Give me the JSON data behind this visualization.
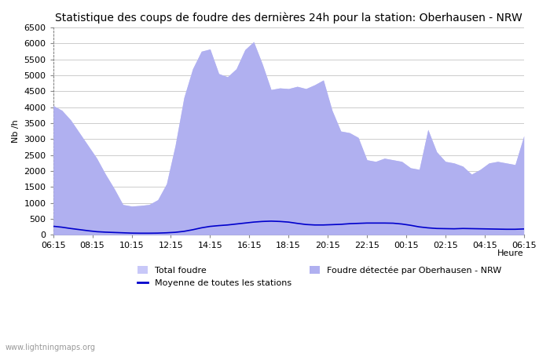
{
  "title": "Statistique des coups de foudre des dernières 24h pour la station: Oberhausen - NRW",
  "ylabel": "Nb /h",
  "xlabel_right": "Heure",
  "watermark": "www.lightningmaps.org",
  "ylim": [
    0,
    6500
  ],
  "yticks": [
    0,
    500,
    1000,
    1500,
    2000,
    2500,
    3000,
    3500,
    4000,
    4500,
    5000,
    5500,
    6000,
    6500
  ],
  "x_labels": [
    "06:15",
    "08:15",
    "10:15",
    "12:15",
    "14:15",
    "16:15",
    "18:15",
    "20:15",
    "22:15",
    "00:15",
    "02:15",
    "04:15",
    "06:15"
  ],
  "total_foudre": [
    4050,
    3900,
    3600,
    3200,
    2800,
    2400,
    1900,
    1450,
    950,
    900,
    920,
    950,
    1100,
    1600,
    2800,
    4300,
    5200,
    5750,
    5820,
    5050,
    4950,
    5200,
    5800,
    6050,
    5350,
    4550,
    4600,
    4580,
    4650,
    4580,
    4700,
    4850,
    3900,
    3250,
    3200,
    3050,
    2350,
    2300,
    2400,
    2350,
    2300,
    2100,
    2050,
    3300,
    2600,
    2300,
    2250,
    2150,
    1900,
    2050,
    2250,
    2300,
    2250,
    2200,
    3100
  ],
  "foudre_oberhausen": [
    4050,
    3900,
    3600,
    3200,
    2800,
    2400,
    1900,
    1450,
    950,
    900,
    920,
    950,
    1100,
    1600,
    2800,
    4300,
    5200,
    5750,
    5820,
    5050,
    4950,
    5200,
    5800,
    6050,
    5350,
    4550,
    4600,
    4580,
    4650,
    4580,
    4700,
    4850,
    3900,
    3250,
    3200,
    3050,
    2350,
    2300,
    2400,
    2350,
    2300,
    2100,
    2050,
    3300,
    2600,
    2300,
    2250,
    2150,
    1900,
    2050,
    2250,
    2300,
    2250,
    2200,
    3100
  ],
  "moyenne": [
    270,
    240,
    200,
    165,
    130,
    100,
    85,
    75,
    65,
    55,
    52,
    52,
    55,
    65,
    80,
    110,
    160,
    220,
    265,
    290,
    310,
    340,
    370,
    400,
    420,
    430,
    420,
    400,
    360,
    325,
    310,
    310,
    320,
    330,
    350,
    360,
    370,
    370,
    370,
    365,
    340,
    300,
    250,
    220,
    200,
    195,
    190,
    200,
    195,
    190,
    185,
    180,
    175,
    175,
    185
  ],
  "fill_color": "#c8c8f8",
  "fill_color_oberhausen": "#b0b0f0",
  "line_color": "#0000cc",
  "bg_color": "#ffffff",
  "grid_color": "#cccccc",
  "title_fontsize": 10,
  "axis_fontsize": 8,
  "tick_fontsize": 8,
  "legend_total_label": "Total foudre",
  "legend_moyenne_label": "Moyenne de toutes les stations",
  "legend_oberhausen_label": "Foudre détectée par Oberhausen - NRW"
}
